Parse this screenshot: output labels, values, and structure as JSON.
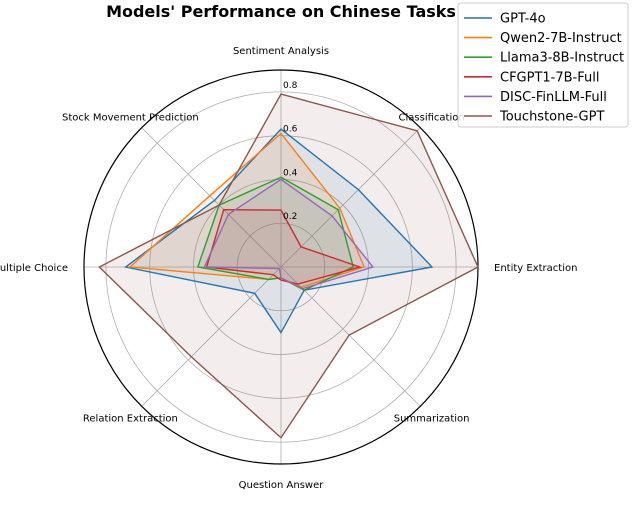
{
  "chart_data": {
    "type": "radar",
    "title": "Models' Performance on Chinese Tasks",
    "categories": [
      "Sentiment Analysis",
      "Classification",
      "Entity Extraction",
      "Summarization",
      "Question Answer",
      "Relation Extraction",
      "Multiple Choice",
      "Stock Movement Prediction"
    ],
    "r_ticks": [
      0.2,
      0.4,
      0.6,
      0.8
    ],
    "r_tick_labels": [
      "0.2",
      "0.4",
      "0.6",
      "0.8"
    ],
    "rlim": [
      0,
      0.9
    ],
    "grid": true,
    "legend_position": "top-right",
    "series": [
      {
        "name": "GPT-4o",
        "color": "#1f77b4",
        "values": [
          0.63,
          0.5,
          0.69,
          0.15,
          0.3,
          0.17,
          0.71,
          0.43
        ]
      },
      {
        "name": "Qwen2-7B-Instruct",
        "color": "#ff7f0e",
        "values": [
          0.61,
          0.38,
          0.38,
          0.13,
          0.05,
          0.08,
          0.69,
          0.46
        ]
      },
      {
        "name": "Llama3-8B-Instruct",
        "color": "#2ca02c",
        "values": [
          0.41,
          0.37,
          0.33,
          0.15,
          0.05,
          0.08,
          0.38,
          0.4
        ]
      },
      {
        "name": "CFGPT1-7B-Full",
        "color": "#d62728",
        "values": [
          0.26,
          0.13,
          0.36,
          0.11,
          0.06,
          0.05,
          0.34,
          0.37
        ]
      },
      {
        "name": "DISC-FinLLM-Full",
        "color": "#9467bd",
        "values": [
          0.4,
          0.33,
          0.42,
          0.14,
          0.05,
          0.01,
          0.35,
          0.34
        ]
      },
      {
        "name": "Touchstone-GPT",
        "color": "#8c564b",
        "values": [
          0.79,
          0.88,
          0.9,
          0.44,
          0.78,
          0.58,
          0.83,
          0.4
        ]
      }
    ]
  }
}
